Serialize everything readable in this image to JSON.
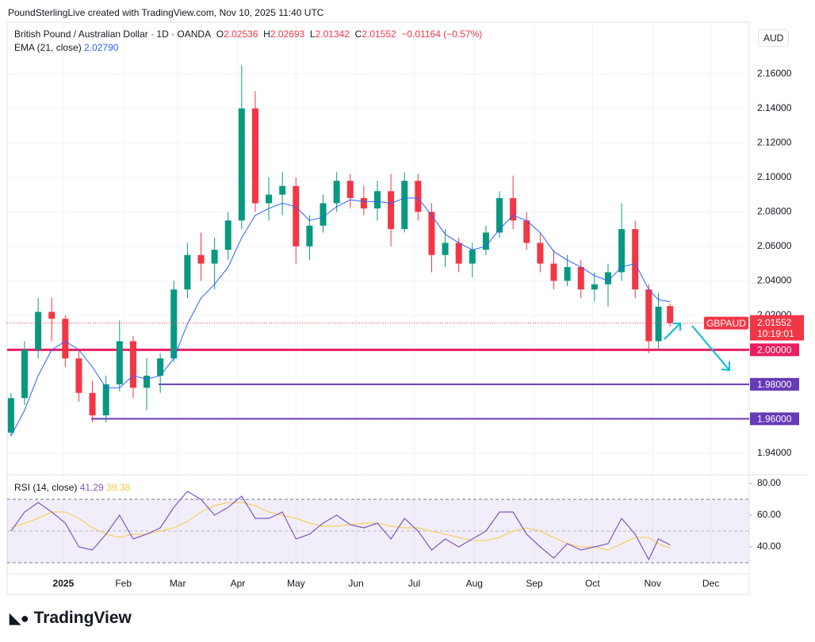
{
  "header": "PoundSterlingLive created with TradingView.com, Nov 10, 2025 11:40 UTC",
  "footer_brand": "TradingView",
  "chart_data": {
    "type": "candlestick",
    "title": "British Pound / Australian Dollar · 1D · OANDA",
    "legend": {
      "o": "O",
      "h": "H",
      "l": "L",
      "c": "C",
      "change": "−0.01164 (−0.57%)"
    },
    "currency": "AUD",
    "symbol": "GBPAUD",
    "countdown": "10:19:01",
    "x": [
      2,
      9,
      16,
      23,
      30,
      37,
      44,
      51,
      58,
      65,
      72,
      79,
      86,
      93,
      100,
      107,
      114,
      121,
      128,
      135,
      142,
      149,
      156,
      163,
      170,
      177,
      184,
      191,
      198,
      205,
      212,
      219,
      226,
      233,
      240,
      247,
      254,
      261,
      268,
      275,
      282,
      289,
      296,
      303,
      310,
      317,
      324,
      331,
      336,
      342
    ],
    "open": [
      1.952,
      1.972,
      2.0,
      2.022,
      2.018,
      1.995,
      1.975,
      1.962,
      1.98,
      2.005,
      1.978,
      1.985,
      1.995,
      2.035,
      2.055,
      2.05,
      2.058,
      2.075,
      2.14,
      2.085,
      2.09,
      2.095,
      2.06,
      2.072,
      2.085,
      2.098,
      2.088,
      2.082,
      2.092,
      2.07,
      2.098,
      2.08,
      2.055,
      2.062,
      2.05,
      2.058,
      2.068,
      2.088,
      2.075,
      2.062,
      2.05,
      2.04,
      2.048,
      2.035,
      2.038,
      2.045,
      2.07,
      2.035,
      2.005,
      2.02536
    ],
    "high": [
      1.975,
      2.005,
      2.03,
      2.03,
      2.02,
      2.0,
      1.982,
      1.985,
      2.017,
      2.008,
      1.995,
      1.998,
      2.04,
      2.062,
      2.068,
      2.065,
      2.08,
      2.165,
      2.15,
      2.1,
      2.103,
      2.1,
      2.078,
      2.09,
      2.103,
      2.102,
      2.095,
      2.098,
      2.102,
      2.103,
      2.102,
      2.085,
      2.07,
      2.065,
      2.062,
      2.072,
      2.092,
      2.101,
      2.08,
      2.068,
      2.058,
      2.055,
      2.052,
      2.045,
      2.05,
      2.085,
      2.075,
      2.038,
      2.033,
      2.02693
    ],
    "low": [
      1.95,
      1.968,
      1.995,
      2.005,
      1.99,
      1.97,
      1.958,
      1.958,
      1.976,
      1.972,
      1.965,
      1.975,
      1.993,
      2.03,
      2.04,
      2.035,
      2.052,
      2.07,
      2.08,
      2.075,
      2.078,
      2.05,
      2.052,
      2.068,
      2.08,
      2.082,
      2.078,
      2.075,
      2.06,
      2.068,
      2.075,
      2.045,
      2.048,
      2.045,
      2.042,
      2.055,
      2.065,
      2.07,
      2.058,
      2.045,
      2.035,
      2.037,
      2.03,
      2.028,
      2.025,
      2.04,
      2.03,
      1.998,
      2.0,
      2.01342
    ],
    "close": [
      1.972,
      2.0,
      2.022,
      2.018,
      1.995,
      1.975,
      1.962,
      1.98,
      2.005,
      1.978,
      1.985,
      1.995,
      2.035,
      2.055,
      2.05,
      2.058,
      2.075,
      2.14,
      2.085,
      2.09,
      2.095,
      2.06,
      2.072,
      2.085,
      2.098,
      2.088,
      2.082,
      2.092,
      2.07,
      2.098,
      2.08,
      2.055,
      2.062,
      2.05,
      2.058,
      2.068,
      2.088,
      2.075,
      2.062,
      2.05,
      2.04,
      2.048,
      2.035,
      2.038,
      2.045,
      2.07,
      2.035,
      2.005,
      2.025,
      2.01552
    ],
    "up_color": "#089981",
    "down_color": "#f23645",
    "xlim": [
      0,
      382
    ],
    "xticks": [
      {
        "value": 29,
        "label": "2025"
      },
      {
        "value": 60,
        "label": "Feb"
      },
      {
        "value": 88,
        "label": "Mar"
      },
      {
        "value": 119,
        "label": "Apr"
      },
      {
        "value": 149,
        "label": "May"
      },
      {
        "value": 180,
        "label": "Jun"
      },
      {
        "value": 210,
        "label": "Jul"
      },
      {
        "value": 241,
        "label": "Aug"
      },
      {
        "value": 272,
        "label": "Sep"
      },
      {
        "value": 302,
        "label": "Oct"
      },
      {
        "value": 333,
        "label": "Nov"
      },
      {
        "value": 363,
        "label": "Dec"
      }
    ],
    "ylim": [
      1.928,
      2.19
    ],
    "yticks": [
      {
        "value": 1.94,
        "label": "1.94000"
      },
      {
        "value": 2.02,
        "label": "2.02000"
      },
      {
        "value": 2.04,
        "label": "2.04000"
      },
      {
        "value": 2.06,
        "label": "2.06000"
      },
      {
        "value": 2.08,
        "label": "2.08000"
      },
      {
        "value": 2.1,
        "label": "2.10000"
      },
      {
        "value": 2.12,
        "label": "2.12000"
      },
      {
        "value": 2.14,
        "label": "2.14000"
      },
      {
        "value": 2.16,
        "label": "2.16000"
      }
    ],
    "grid": true,
    "indicator": {
      "name": "EMA (21, close)",
      "color": "#2962ff",
      "value_label": "2.02790",
      "values": [
        1.95,
        1.965,
        1.985,
        2.0,
        2.005,
        2.0,
        1.99,
        1.978,
        1.978,
        1.985,
        1.983,
        1.985,
        1.995,
        2.015,
        2.03,
        2.038,
        2.048,
        2.065,
        2.078,
        2.082,
        2.085,
        2.083,
        2.075,
        2.077,
        2.083,
        2.087,
        2.086,
        2.086,
        2.085,
        2.088,
        2.088,
        2.078,
        2.067,
        2.062,
        2.058,
        2.06,
        2.07,
        2.078,
        2.075,
        2.068,
        2.057,
        2.052,
        2.048,
        2.043,
        2.04,
        2.048,
        2.05,
        2.035,
        2.029,
        2.0279
      ]
    },
    "levels": [
      {
        "value": 2,
        "label": "2.00000",
        "color": "#e91e63"
      },
      {
        "value": 1.98,
        "label": "1.98000",
        "color": "#673ab7"
      },
      {
        "value": 1.96,
        "label": "1.96000",
        "color": "#673ab7"
      }
    ],
    "rsi": {
      "name": "RSI (14, close)",
      "color": "#7e57c2",
      "ma_color": "#f7c948",
      "values": [
        50,
        62,
        68,
        62,
        55,
        40,
        38,
        48,
        60,
        45,
        48,
        52,
        65,
        75,
        70,
        60,
        65,
        72,
        58,
        58,
        62,
        45,
        48,
        55,
        60,
        54,
        52,
        55,
        45,
        58,
        50,
        38,
        45,
        40,
        45,
        50,
        62,
        62,
        48,
        40,
        33,
        42,
        38,
        40,
        42,
        58,
        48,
        32,
        45,
        41.29
      ],
      "ma": [
        52,
        55,
        58,
        62,
        62,
        58,
        52,
        48,
        46,
        48,
        48,
        50,
        52,
        56,
        62,
        66,
        68,
        68,
        66,
        62,
        60,
        58,
        55,
        53,
        53,
        54,
        55,
        55,
        53,
        52,
        52,
        50,
        48,
        46,
        44,
        44,
        46,
        50,
        52,
        50,
        46,
        42,
        40,
        40,
        38,
        42,
        46,
        46,
        42,
        39.38
      ],
      "ylim": [
        24,
        85
      ],
      "yticks": [
        {
          "value": 80,
          "label": "80.00"
        },
        {
          "value": 60,
          "label": "60.00"
        },
        {
          "value": 40,
          "label": "40.00"
        }
      ],
      "band": [
        30,
        70
      ],
      "mid": 50
    }
  }
}
